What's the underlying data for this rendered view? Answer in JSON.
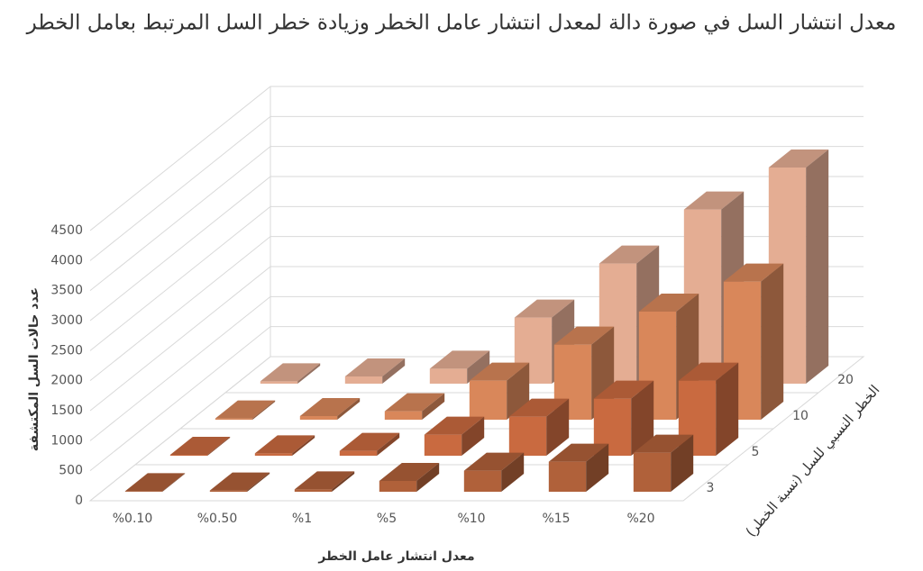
{
  "chart_data": {
    "type": "bar3d",
    "title": "معدل انتشار السل في صورة دالة لمعدل انتشار عامل الخطر وزيادة خطر السل المرتبط بعامل الخطر",
    "y_label": "عدد حالات السل المكتشفة",
    "x_label": "معدل انتشار عامل الخطر",
    "z_label": "الخطر النسبي للسل (نسبة الخطر)",
    "categories": [
      "%0.10",
      "%0.50",
      "%1",
      "%5",
      "%10",
      "%15",
      "%20"
    ],
    "series": [
      {
        "name": "3",
        "color": "#b0613a",
        "values": [
          10,
          20,
          40,
          180,
          350,
          500,
          650
        ]
      },
      {
        "name": "5",
        "color": "#c96a40",
        "values": [
          15,
          40,
          80,
          350,
          650,
          950,
          1250
        ]
      },
      {
        "name": "10",
        "color": "#d9875a",
        "values": [
          20,
          60,
          140,
          650,
          1250,
          1800,
          2300
        ]
      },
      {
        "name": "20",
        "color": "#e4ad93",
        "values": [
          40,
          120,
          250,
          1100,
          2000,
          2900,
          3600
        ]
      }
    ],
    "ylim": [
      0,
      4500
    ],
    "yticks": [
      0,
      500,
      1000,
      1500,
      2000,
      2500,
      3000,
      3500,
      4000,
      4500
    ],
    "grid": true
  }
}
